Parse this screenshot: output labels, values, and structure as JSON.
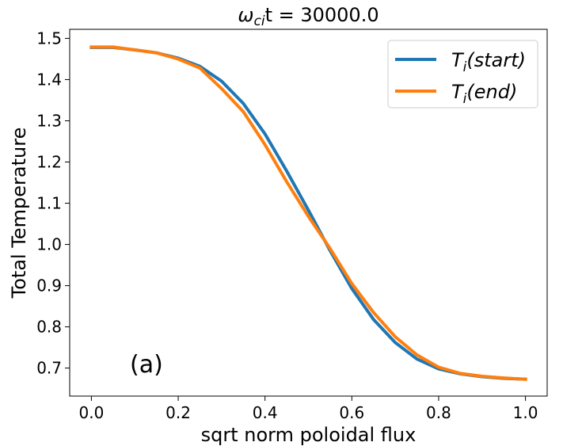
{
  "chart_data": {
    "type": "line",
    "title_parts": [
      "ω",
      "ci",
      "t = 30000.0"
    ],
    "xlabel": "sqrt norm poloidal flux",
    "ylabel": "Total Temperature",
    "xlim": [
      -0.05,
      1.05
    ],
    "ylim": [
      0.632,
      1.522
    ],
    "xticks": [
      0.0,
      0.2,
      0.4,
      0.6,
      0.8,
      1.0
    ],
    "xtick_labels": [
      "0.0",
      "0.2",
      "0.4",
      "0.6",
      "0.8",
      "1.0"
    ],
    "yticks": [
      0.7,
      0.8,
      0.9,
      1.0,
      1.1,
      1.2,
      1.3,
      1.4,
      1.5
    ],
    "ytick_labels": [
      "0.7",
      "0.8",
      "0.9",
      "1.0",
      "1.1",
      "1.2",
      "1.3",
      "1.4",
      "1.5"
    ],
    "grid": false,
    "legend_position": "top-right",
    "annotation": "(a)",
    "series": [
      {
        "name": "Ti(start)",
        "label_main": "T",
        "label_sub": "i",
        "label_rest": "(start)",
        "color": "#1f77b4",
        "x": [
          0.0,
          0.05,
          0.1,
          0.15,
          0.2,
          0.25,
          0.3,
          0.35,
          0.4,
          0.45,
          0.5,
          0.55,
          0.6,
          0.65,
          0.7,
          0.75,
          0.8,
          0.85,
          0.9,
          0.95,
          1.0
        ],
        "y": [
          1.478,
          1.478,
          1.472,
          1.465,
          1.452,
          1.432,
          1.396,
          1.342,
          1.268,
          1.178,
          1.083,
          0.985,
          0.893,
          0.818,
          0.762,
          0.722,
          0.698,
          0.686,
          0.679,
          0.675,
          0.673
        ]
      },
      {
        "name": "Ti(end)",
        "label_main": "T",
        "label_sub": "i",
        "label_rest": "(end)",
        "color": "#ff7f0e",
        "x": [
          0.0,
          0.05,
          0.1,
          0.15,
          0.2,
          0.25,
          0.3,
          0.35,
          0.4,
          0.45,
          0.5,
          0.55,
          0.6,
          0.65,
          0.7,
          0.75,
          0.8,
          0.85,
          0.9,
          0.95,
          1.0
        ],
        "y": [
          1.479,
          1.479,
          1.472,
          1.465,
          1.45,
          1.428,
          1.378,
          1.322,
          1.242,
          1.152,
          1.068,
          0.99,
          0.905,
          0.835,
          0.776,
          0.732,
          0.702,
          0.687,
          0.68,
          0.676,
          0.673
        ]
      }
    ]
  }
}
